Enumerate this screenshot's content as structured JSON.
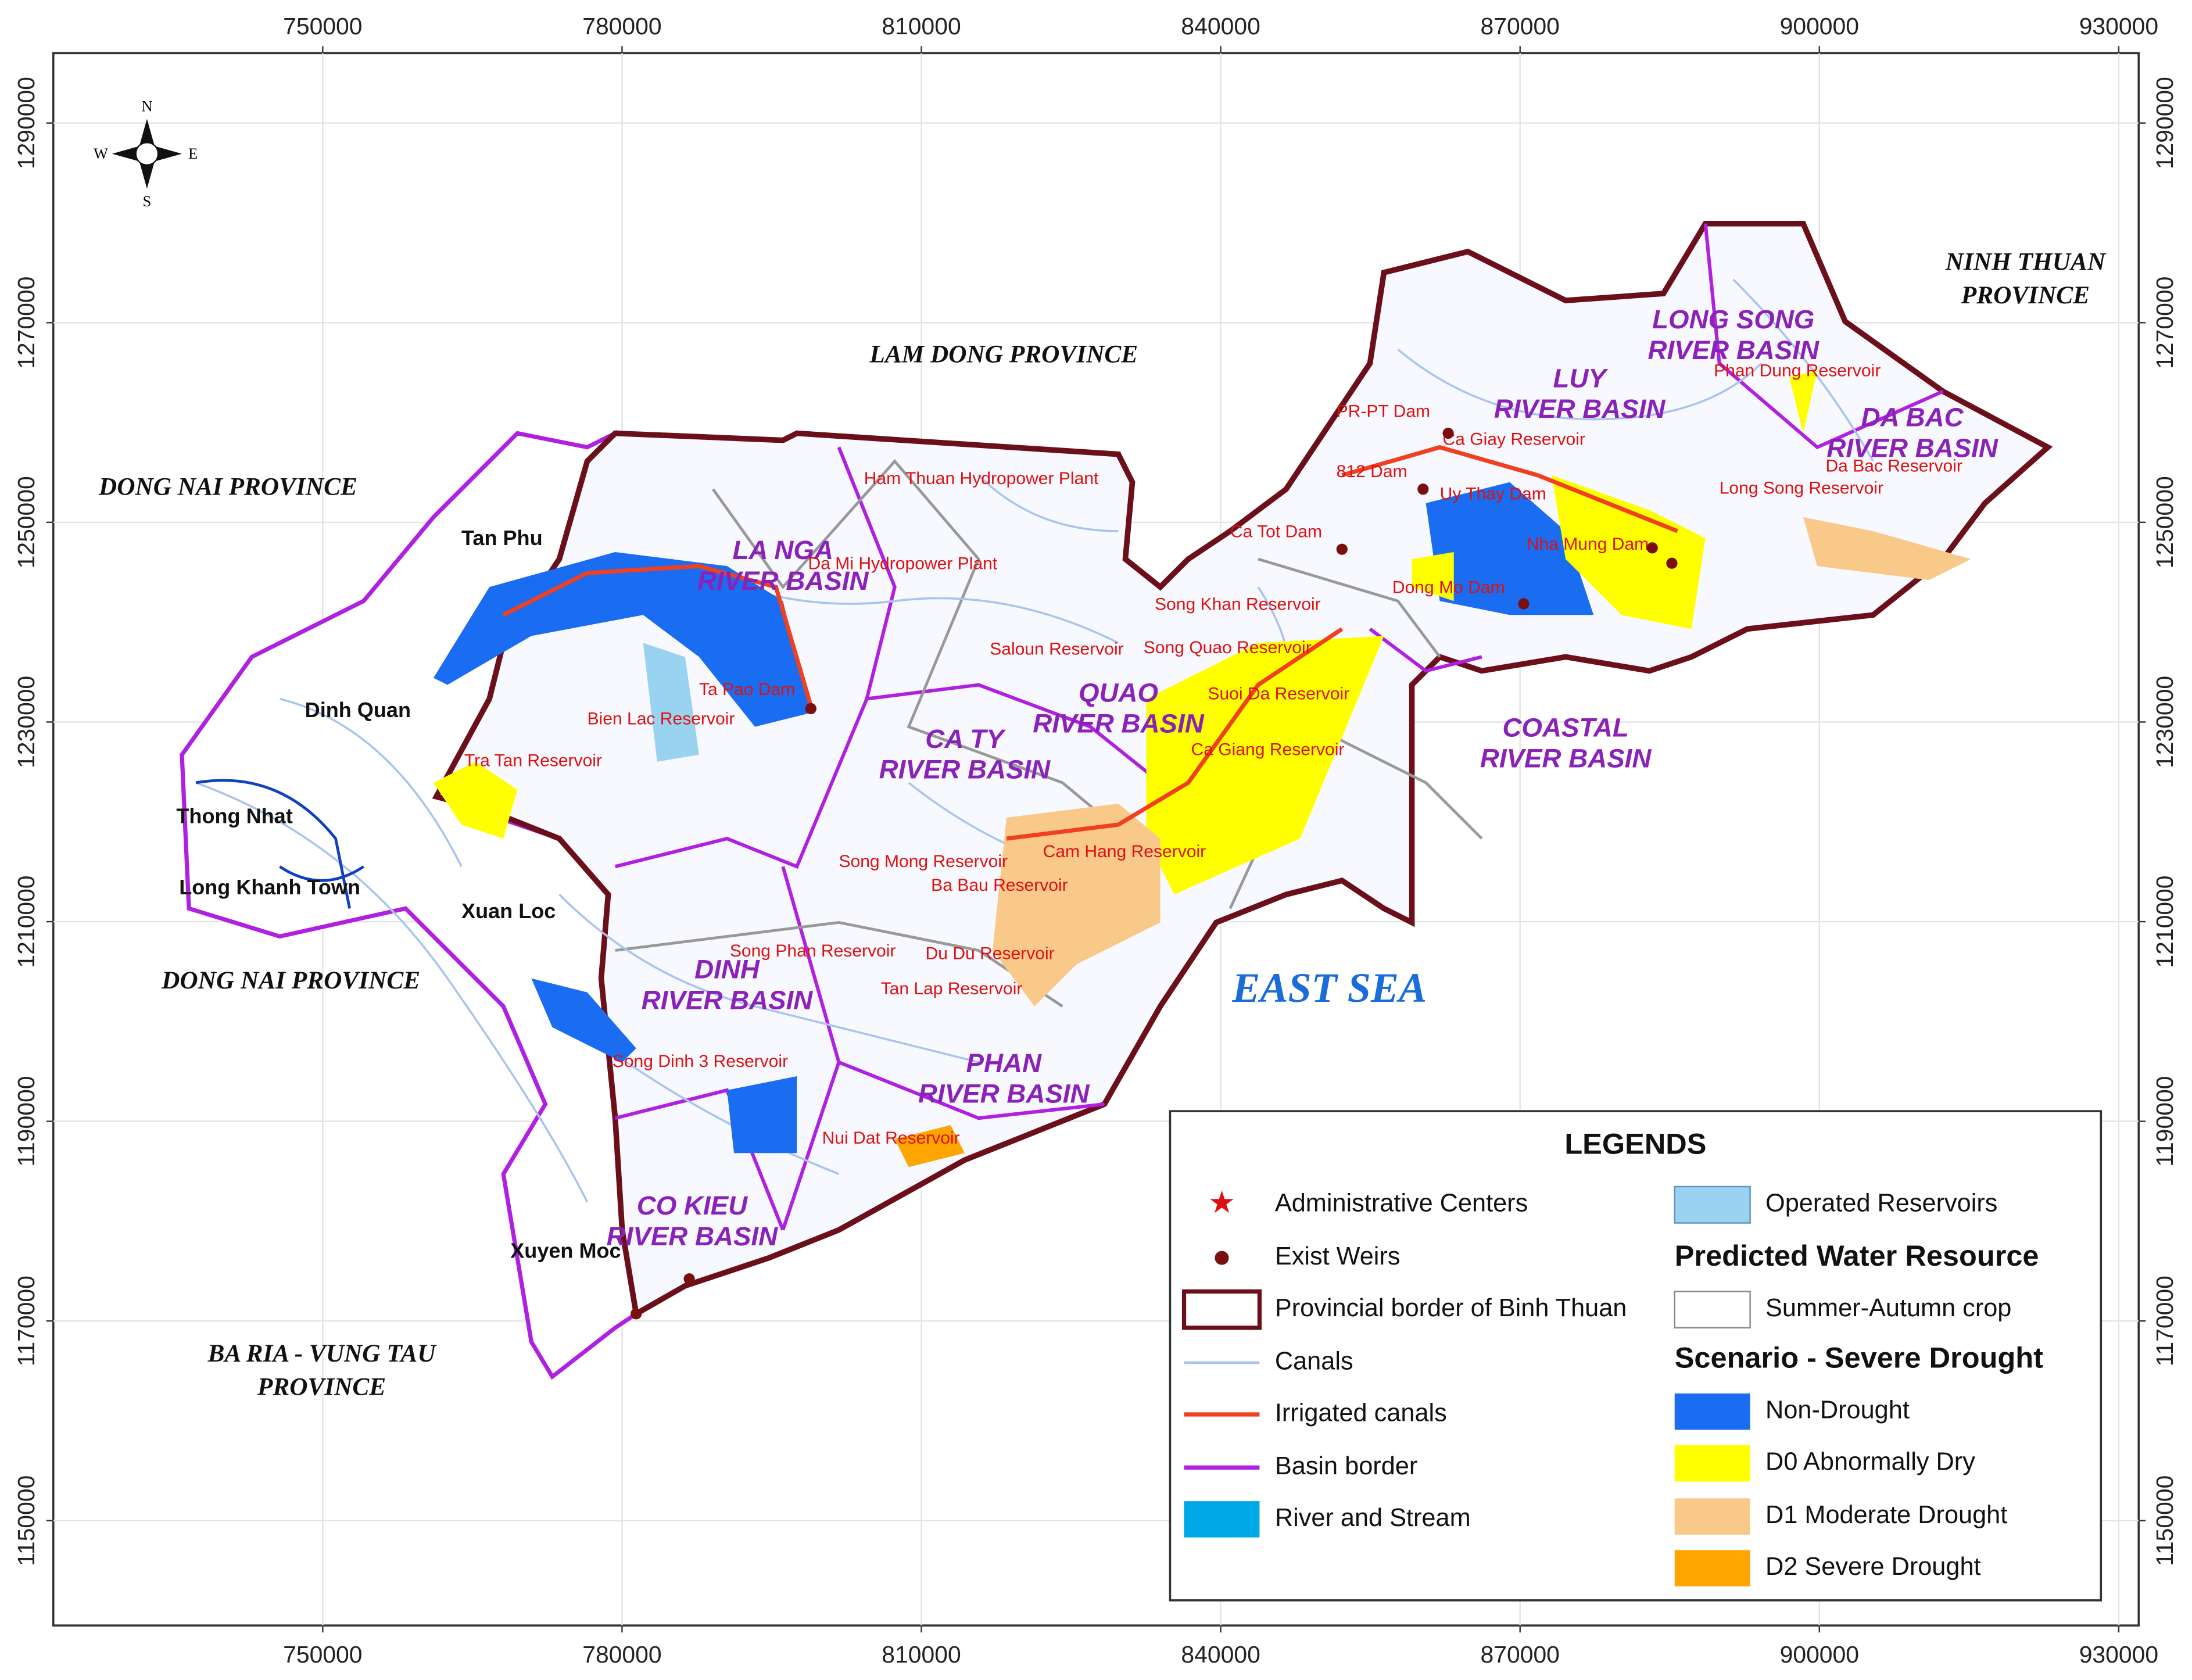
{
  "map": {
    "xlim": [
      723000,
      932000
    ],
    "ylim": [
      1139500,
      1297000
    ],
    "xticks": [
      750000,
      780000,
      810000,
      840000,
      870000,
      900000,
      930000
    ],
    "yticks": [
      1150000,
      1170000,
      1190000,
      1210000,
      1230000,
      1250000,
      1270000,
      1290000
    ],
    "compass": {
      "north": "N",
      "south": "S",
      "east": "E",
      "west": "W"
    },
    "provinces": [
      [
        "LAM DONG PROVINCE"
      ],
      [
        "DONG NAI PROVINCE"
      ],
      [
        "DONG NAI PROVINCE"
      ],
      [
        "NINH THUAN",
        "PROVINCE"
      ],
      [
        "BA RIA - VUNG TAU",
        "PROVINCE"
      ]
    ],
    "sea": "EAST SEA",
    "basins": [
      [
        "LA NGA",
        "RIVER BASIN"
      ],
      [
        "LUY",
        "RIVER BASIN"
      ],
      [
        "LONG SONG",
        "RIVER BASIN"
      ],
      [
        "DA BAC",
        "RIVER BASIN"
      ],
      [
        "QUAO",
        "RIVER BASIN"
      ],
      [
        "CA TY",
        "RIVER BASIN"
      ],
      [
        "COASTAL",
        "RIVER BASIN"
      ],
      [
        "DINH",
        "RIVER BASIN"
      ],
      [
        "PHAN",
        "RIVER BASIN"
      ],
      [
        "CO KIEU",
        "RIVER BASIN"
      ]
    ],
    "towns": [
      "Tan Phu",
      "Dinh Quan",
      "Thong Nhat",
      "Long Khanh Town",
      "Xuan Loc",
      "Xuyen Moc"
    ],
    "reservoirs": [
      "Ham Thuan Hydropower Plant",
      "Da Mi Hydropower Plant",
      "Ta Pao Dam",
      "Bien Lac Reservoir",
      "Tra Tan Reservoir",
      "PR-PT Dam",
      "Ca Giay Reservoir",
      "812 Dam",
      "Uy Thay Dam",
      "Ca Tot Dam",
      "Nha Mung Dam",
      "Dong Mo Dam",
      "Song Khan Reservoir",
      "Song Quao Reservoir",
      "Saloun Reservoir",
      "Suoi Da Reservoir",
      "Ca Giang Reservoir",
      "Cam Hang Reservoir",
      "Song Mong Reservoir",
      "Ba Bau Reservoir",
      "Song Phan Reservoir",
      "Du Du Reservoir",
      "Tan Lap Reservoir",
      "Song Dinh 3 Reservoir",
      "Nui Dat Reservoir",
      "Phan Dung Reservoir",
      "Da Bac Reservoir",
      "Long Song Reservoir"
    ]
  },
  "legend": {
    "title": "LEGENDS",
    "items": [
      "Administrative Centers",
      "Exist Weirs",
      "Provincial border of Binh Thuan",
      "Canals",
      "Irrigated canals",
      "Basin border",
      "River and Stream",
      "Operated Reservoirs"
    ],
    "water_heading": "Predicted Water Resource",
    "crop": "Summer-Autumn crop",
    "scenario_heading": "Scenario - Severe Drought",
    "classes": [
      "Non-Drought",
      "D0 Abnormally Dry",
      "D1 Moderate Drought",
      "D2 Severe Drought"
    ]
  }
}
